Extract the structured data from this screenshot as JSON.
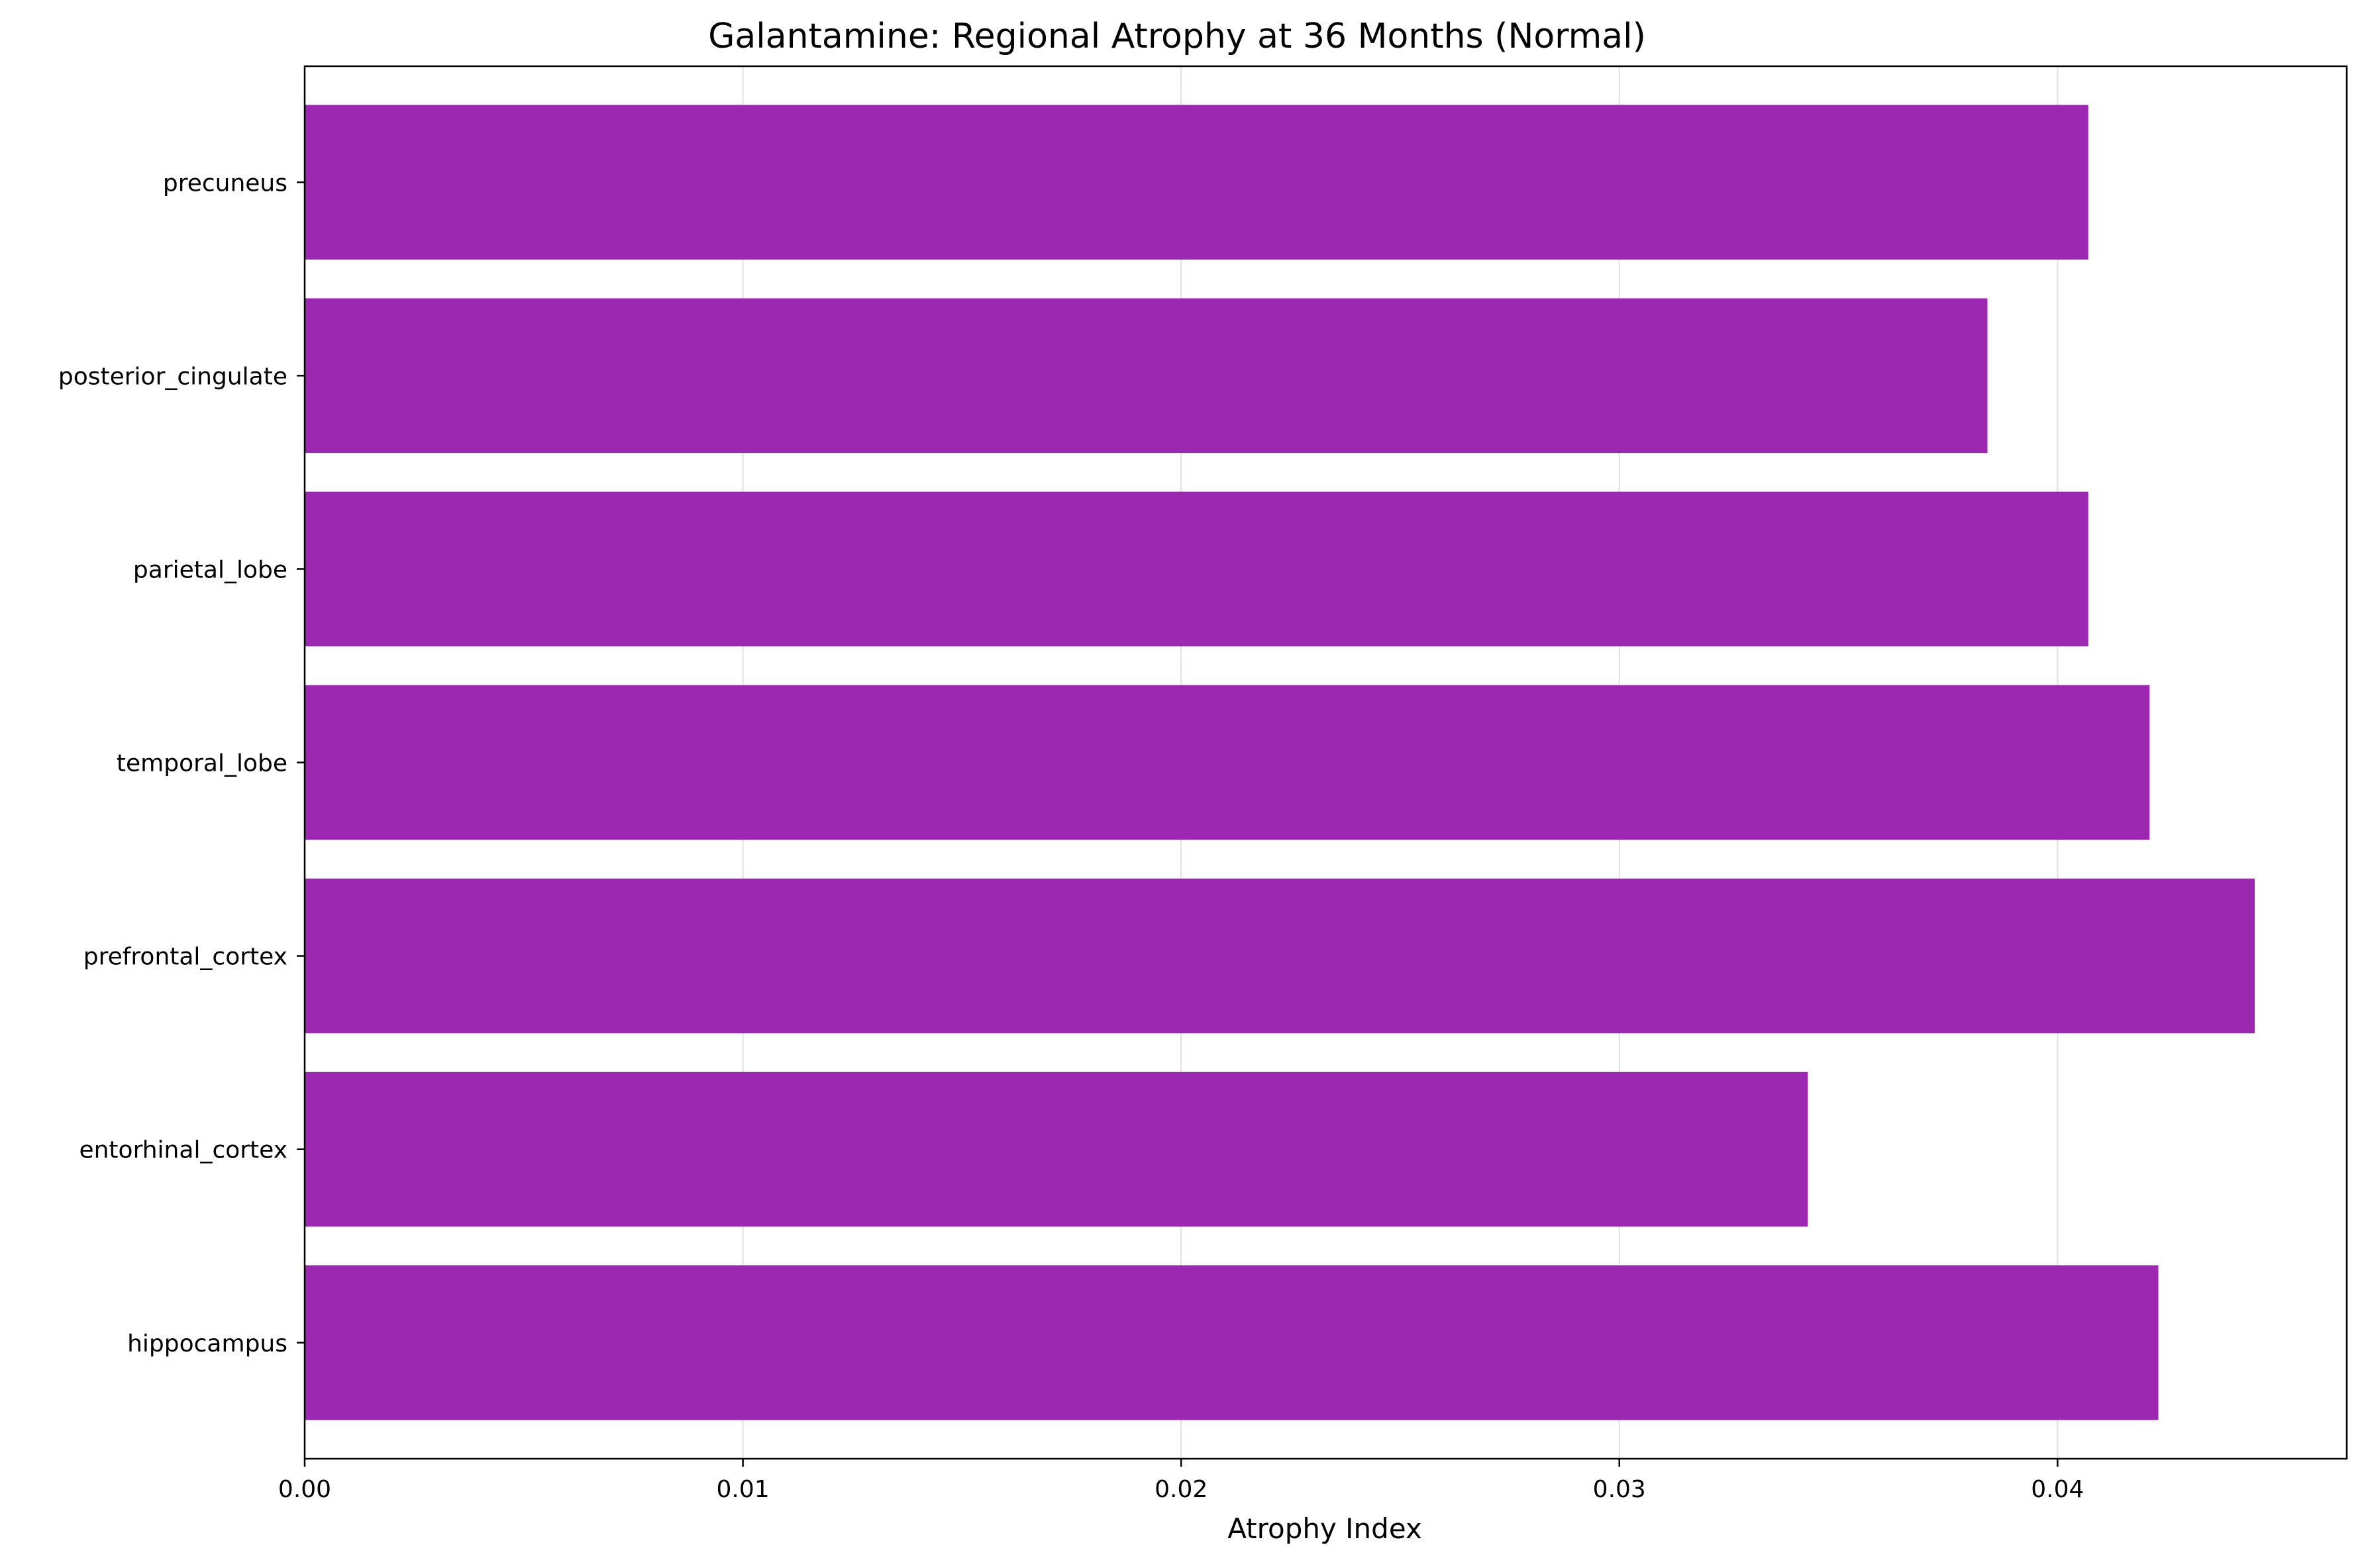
{
  "chart_data": {
    "type": "bar",
    "orientation": "horizontal",
    "title": "Galantamine: Regional Atrophy at 36 Months (Normal)",
    "xlabel": "Atrophy Index",
    "ylabel": "",
    "categories": [
      "hippocampus",
      "entorhinal_cortex",
      "prefrontal_cortex",
      "temporal_lobe",
      "parietal_lobe",
      "posterior_cingulate",
      "precuneus"
    ],
    "values": [
      0.0423,
      0.0343,
      0.0445,
      0.0421,
      0.0407,
      0.0384,
      0.0407
    ],
    "xlim": [
      0,
      0.0466
    ],
    "xticks": [
      0.0,
      0.01,
      0.02,
      0.03,
      0.04
    ],
    "xtick_labels": [
      "0.00",
      "0.01",
      "0.02",
      "0.03",
      "0.04"
    ],
    "grid": "x",
    "bar_color": "#9c27b0",
    "grid_color": "#e0e0e0",
    "axis_color": "#000000"
  }
}
